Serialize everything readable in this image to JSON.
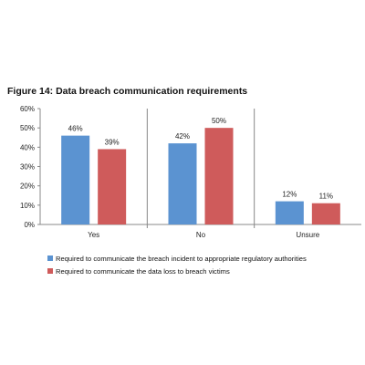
{
  "figure": {
    "title": "Figure 14: Data breach communication requirements"
  },
  "chart_data": {
    "type": "bar",
    "categories": [
      "Yes",
      "No",
      "Unsure"
    ],
    "series": [
      {
        "name": "Required to communicate the breach incident to appropriate regulatory authorities",
        "values": [
          46,
          42,
          12
        ],
        "labels": [
          "46%",
          "42%",
          "12%"
        ],
        "color": "#5b93d1"
      },
      {
        "name": "Required to communicate the data loss to breach victims",
        "values": [
          39,
          50,
          11
        ],
        "labels": [
          "39%",
          "50%",
          "11%"
        ],
        "color": "#cf5b5b"
      }
    ],
    "ylim": [
      0,
      60
    ],
    "yticks": [
      "0%",
      "10%",
      "20%",
      "30%",
      "40%",
      "50%",
      "60%"
    ],
    "ytick_values": [
      0,
      10,
      20,
      30,
      40,
      50,
      60
    ],
    "grid": false,
    "legend_position": "bottom-left"
  }
}
